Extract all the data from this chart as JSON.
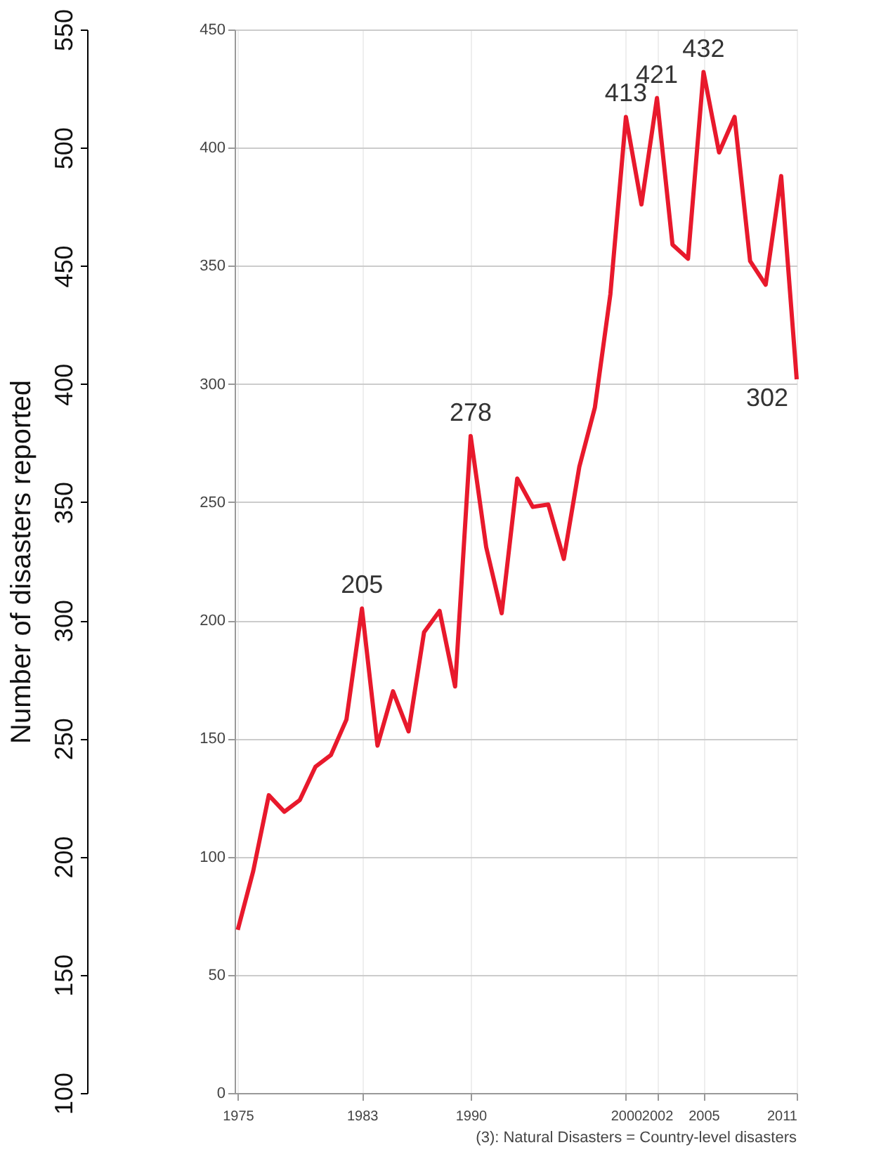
{
  "chart_data": {
    "type": "line",
    "y2label": "Number of disasters reported",
    "x": [
      1975,
      1976,
      1977,
      1978,
      1979,
      1980,
      1981,
      1982,
      1983,
      1984,
      1985,
      1986,
      1987,
      1988,
      1989,
      1990,
      1991,
      1992,
      1993,
      1994,
      1995,
      1996,
      1997,
      1998,
      1999,
      2000,
      2001,
      2002,
      2003,
      2004,
      2005,
      2006,
      2007,
      2008,
      2009,
      2010,
      2011
    ],
    "values": [
      69,
      94,
      126,
      119,
      124,
      138,
      143,
      158,
      205,
      147,
      170,
      153,
      195,
      204,
      172,
      278,
      231,
      203,
      260,
      248,
      249,
      226,
      265,
      290,
      338,
      413,
      376,
      421,
      359,
      353,
      432,
      398,
      413,
      352,
      342,
      388,
      302
    ],
    "value_labels": [
      null,
      null,
      null,
      null,
      null,
      null,
      null,
      null,
      "205",
      null,
      null,
      null,
      null,
      null,
      null,
      "278",
      null,
      null,
      null,
      null,
      null,
      null,
      null,
      null,
      null,
      "413",
      null,
      "421",
      null,
      null,
      "432",
      null,
      null,
      null,
      null,
      null,
      "302"
    ],
    "color": "#e8192c",
    "xlim": [
      1974.8,
      2011
    ],
    "xticks": [
      1975,
      1983,
      1990,
      2000,
      2002,
      2005,
      2011
    ],
    "ylim": [
      0,
      450
    ],
    "yticks": [
      0,
      50,
      100,
      150,
      200,
      250,
      300,
      350,
      400,
      450
    ],
    "y2lim": [
      100,
      550
    ],
    "y2ticks": [
      100,
      150,
      200,
      250,
      300,
      350,
      400,
      450,
      500,
      550
    ],
    "grid": true,
    "annotations": [
      "(3): Natural Disasters = Country-level disasters"
    ]
  }
}
